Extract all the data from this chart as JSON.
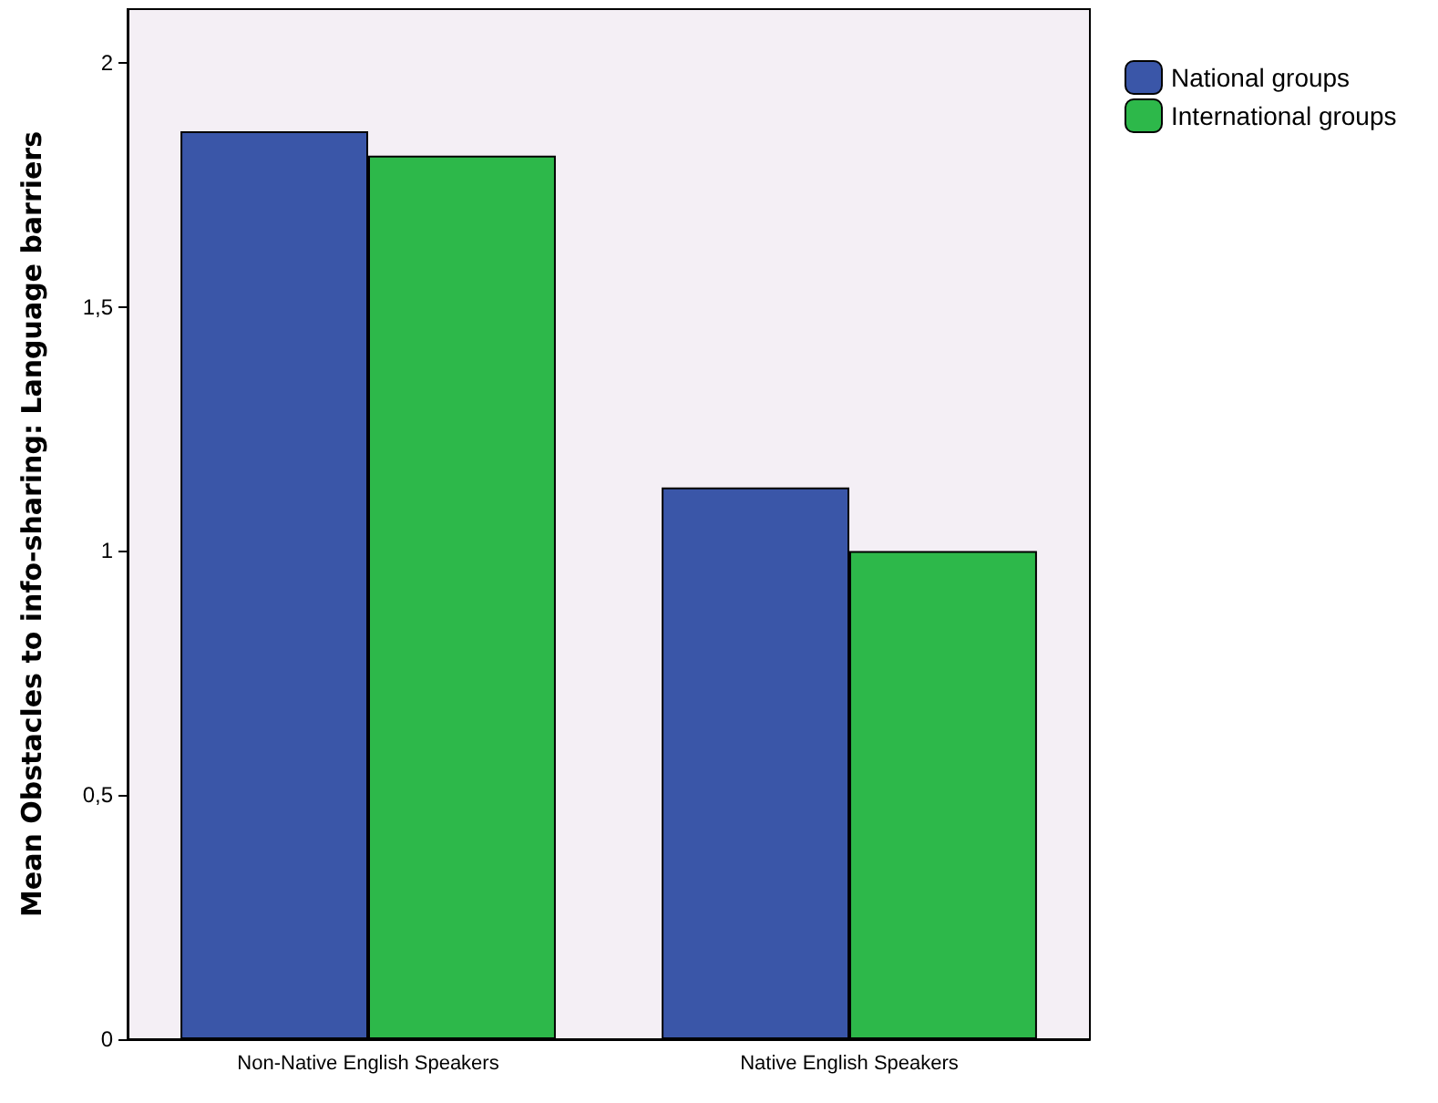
{
  "chart_data": {
    "type": "bar",
    "ylabel": "Mean Obstacles to info-sharing: Language barriers",
    "categories": [
      "Non-Native English Speakers",
      "Native English Speakers"
    ],
    "series": [
      {
        "name": "National groups",
        "color": "#3a56a8",
        "values": [
          1.86,
          1.13
        ]
      },
      {
        "name": "International groups",
        "color": "#2db84a",
        "values": [
          1.81,
          1.0
        ]
      }
    ],
    "ylim": [
      0,
      2.11
    ],
    "yticks": [
      0,
      {
        "value": 0.5,
        "label": "0,5"
      },
      1,
      {
        "value": 1.5,
        "label": "1,5"
      },
      2
    ],
    "grid": false,
    "legend": "top right"
  }
}
